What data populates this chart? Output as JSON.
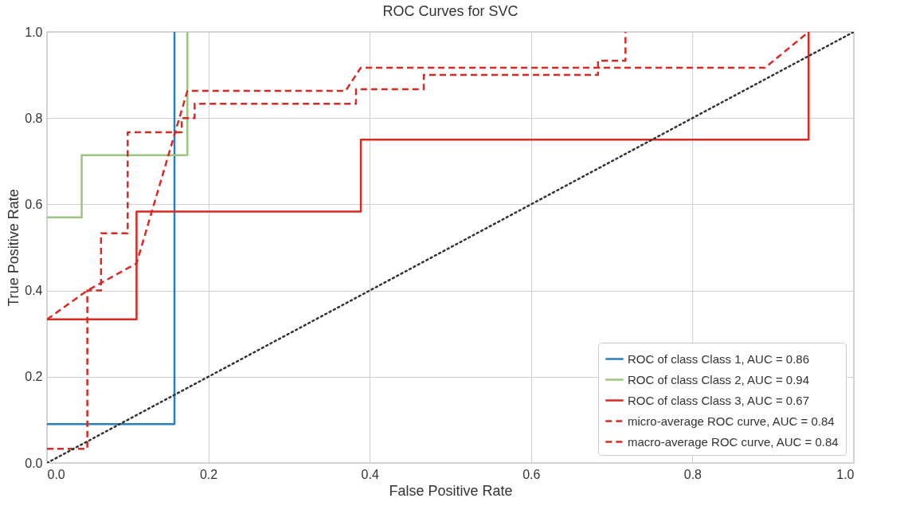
{
  "chart_data": {
    "type": "line",
    "title": "ROC Curves for SVC",
    "xlabel": "False Positive Rate",
    "ylabel": "True Positive Rate",
    "xlim": [
      0,
      1
    ],
    "ylim": [
      0,
      1
    ],
    "xticks": [
      {
        "value": 0,
        "label": "0.0"
      },
      {
        "value": 0.2,
        "label": "0.2"
      },
      {
        "value": 0.4,
        "label": "0.4"
      },
      {
        "value": 0.6,
        "label": "0.6"
      },
      {
        "value": 0.8,
        "label": "0.8"
      },
      {
        "value": 1,
        "label": "1.0"
      }
    ],
    "yticks": [
      {
        "value": 0,
        "label": "0.0"
      },
      {
        "value": 0.2,
        "label": "0.2"
      },
      {
        "value": 0.4,
        "label": "0.4"
      },
      {
        "value": 0.6,
        "label": "0.6"
      },
      {
        "value": 0.8,
        "label": "0.8"
      },
      {
        "value": 1,
        "label": "1.0"
      }
    ],
    "grid": true,
    "legend": "bottom right",
    "marker": "none",
    "series": [
      {
        "name": "ROC of class Class 1, AUC = 0.86",
        "color": "#2a7fb8",
        "line_style": "solid",
        "x": [
          0,
          0.158,
          0.158
        ],
        "values": [
          0.09,
          0.09,
          1.0
        ]
      },
      {
        "name": "ROC of class Class 2, AUC = 0.94",
        "color": "#9cc67f",
        "line_style": "solid",
        "x": [
          0,
          0.043,
          0.043,
          0.174,
          0.174
        ],
        "values": [
          0.57,
          0.57,
          0.714,
          0.714,
          1.0
        ]
      },
      {
        "name": "ROC of class Class 3, AUC = 0.67",
        "color": "#d62a22",
        "line_style": "solid",
        "x": [
          0,
          0.111,
          0.111,
          0.389,
          0.389,
          0.944,
          0.944
        ],
        "values": [
          0.333,
          0.333,
          0.583,
          0.583,
          0.75,
          0.75,
          1.0
        ]
      },
      {
        "name": "micro-average ROC curve, AUC = 0.84",
        "color": "#d62a22",
        "line_style": "dashed",
        "x": [
          0,
          0.05,
          0.05,
          0.067,
          0.067,
          0.1,
          0.1,
          0.167,
          0.167,
          0.183,
          0.183,
          0.383,
          0.383,
          0.467,
          0.467,
          0.683,
          0.683,
          0.717,
          0.717
        ],
        "values": [
          0.033,
          0.033,
          0.4,
          0.4,
          0.533,
          0.533,
          0.767,
          0.767,
          0.8,
          0.8,
          0.833,
          0.833,
          0.867,
          0.867,
          0.9,
          0.9,
          0.933,
          0.933,
          1.0
        ]
      },
      {
        "name": "macro-average ROC curve, AUC = 0.84",
        "color": "#d62a22",
        "line_style": "dashed",
        "x": [
          0,
          0.05,
          0.111,
          0.174,
          0.37,
          0.389,
          0.89,
          0.944
        ],
        "values": [
          0.333,
          0.4,
          0.463,
          0.863,
          0.863,
          0.917,
          0.917,
          1.0
        ]
      },
      {
        "color": "#333333",
        "line_style": "dotted",
        "x": [
          0,
          1
        ],
        "values": [
          0,
          1
        ]
      }
    ]
  }
}
